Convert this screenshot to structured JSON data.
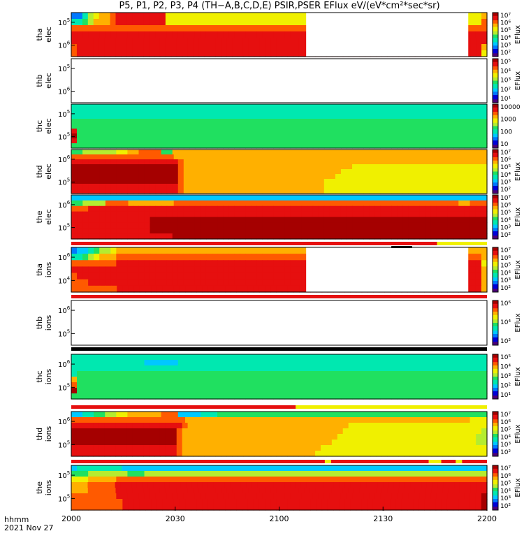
{
  "title": "P5, P1, P2, P3, P4 (TH−A,B,C,D,E) PSIR,PSER EFlux eV/(eV*cm²*sec*sr)",
  "x_axis": {
    "ticks": [
      "2000",
      "2030",
      "2100",
      "2130",
      "2200"
    ],
    "label_line1": "hhmm",
    "label_line2": "2021 Nov 27"
  },
  "colors": {
    "palette": [
      "#4b0079",
      "#0000d8",
      "#0078ff",
      "#00c8ff",
      "#00e8b0",
      "#20e060",
      "#b4ec30",
      "#f0f000",
      "#ffb000",
      "#ff5a00",
      "#e60f0f",
      "#a50000"
    ]
  },
  "chart_data": [
    {
      "type": "heatmap",
      "panel": "tha-elec",
      "ylabel": [
        "tha",
        "elec"
      ],
      "yticks": [
        {
          "v": "10",
          "e": "5"
        },
        {
          "v": "10",
          "e": "6"
        }
      ],
      "colorbar": {
        "title": "EFlux",
        "ticks": [
          "10²",
          "10³",
          "10⁴",
          "10⁵",
          "10⁶",
          "10⁷"
        ]
      },
      "rows": [
        "22467889AAAAAAAAA7777777777777777777777777777777777777777777777777777777778",
        "44568889AAAAAAAAA7777777777777777777777777777777777777777777777777777777779",
        "99999999999999999999999999999999999999999999999999999999999999999999999999",
        "AAAAAAAAAAAAAAAAAAAAAAAAAAAAAAAAAAAAAAAAAAAAAAAAAAAAAAAAAAAAAAAAAAAAAAAAAA",
        "AAAAAAAAAAAAAAAAAAAAAAAAAAAAAAAAAAAAAAAAAAAAAAAAAAAAAAAAAAAAAAAAAAAAAAAAAAA",
        "9AAAAAAAAAAAAAAAAAAAAAAAAAAAAAAAAAAAAAAAAAAAAAAAAAAAAAAAAAAAAAAAAAAAAAAAAA8",
        "9AAAAAAAAAAAAAAAAAAAAAAAAAAAAAAAAAAAAAAAAAAAAAAAAAAAAAAAAAAAAAAAAAAAAAAAAA7"
      ],
      "gaps": [
        [
          0.565,
          0.955
        ]
      ]
    },
    {
      "type": "heatmap",
      "panel": "thb-elec",
      "ylabel": [
        "thb",
        "elec"
      ],
      "yticks": [
        {
          "v": "10",
          "e": "5"
        },
        {
          "v": "10",
          "e": "6"
        }
      ],
      "colorbar": {
        "title": "EFlux",
        "ticks": [
          "10¹",
          "10²",
          "10³",
          "10⁴",
          "10⁵"
        ]
      },
      "rows": [],
      "gaps": []
    },
    {
      "type": "heatmap",
      "panel": "thc-elec",
      "ylabel": [
        "thc",
        "elec"
      ],
      "yticks": [
        {
          "v": "10",
          "e": "5"
        },
        {
          "v": "10",
          "e": "5"
        }
      ],
      "colorbar": {
        "title": "",
        "ticks": [
          "10",
          "100",
          "1000",
          "10000"
        ]
      },
      "rows": [
        "44444444444444444444444444444444444444444444444444444444444444444444444444",
        "44444444444444444444444444444444444444444444444444444444444444444444444444",
        "44444444444444444444444444444444444444444444444444444444444444444444444444",
        "55555555555555555555555555555555555555555555555555555555555555555555555555",
        "55555555555555555555555555555555555555555555555555555555555555555555555555",
        "A5555555555555555555555555555555555555555555555555555555555555555555555555",
        "B5555555555555555555555555555555555555555555555555555555555555555555555555",
        "A5555555555555555555555555555555555555555555555555555555555555555555555555",
        "55555555555555555555555555555555555555555555555555555555555555555555555555"
      ],
      "gaps": []
    },
    {
      "type": "heatmap",
      "panel": "thd-elec",
      "ylabel": [
        "thd",
        "elec"
      ],
      "yticks": [
        {
          "v": "10",
          "e": "6"
        },
        {
          "v": "10",
          "e": "5"
        }
      ],
      "colorbar": {
        "title": "EFlux",
        "ticks": [
          "10²",
          "10³",
          "10⁴",
          "10⁵",
          "10⁶",
          "10⁷"
        ]
      },
      "rows": [
        "55666666778899995588888888888888888888888888888888888888888888888888888888",
        "9999999999999999998888888888888888888888888888888888888888888888888888888",
        "AAAAAAAAAAAAAAAAAAA9888888888888888888888888888888888888888888888888888888",
        "BBBBBBBBBBBBBBBBBBB9888888888888888888888888888888777777777777777777777777",
        "BBBBBBBBBBBBBBBBBBB9888888888888888888888888888877777777777777777777777777",
        "BBBBBBBBBBBBBBBBBBB9888888888888888888888888888777777777777777777777777777",
        "BBBBBBBBBBBBBBBBBBB9888888888888888888888888877777777777777777777777777777",
        "AAAAAAAAAAAAAAAAAAA9888888888888888888888888877777777777777777777777777777",
        "AAAAAAAAAAAAAAAAAAA9888888888888888888888888877777777777777777777777777777"
      ],
      "gaps": []
    },
    {
      "type": "heatmap",
      "panel": "the-elec",
      "ylabel": [
        "the",
        "elec"
      ],
      "yticks": [
        {
          "v": "10",
          "e": "6"
        },
        {
          "v": "10",
          "e": "5"
        }
      ],
      "colorbar": {
        "title": "EFlux",
        "ticks": [
          "10²",
          "10³",
          "10⁴",
          "10⁵",
          "10⁶",
          "10⁷"
        ]
      },
      "rows": [
        "33333333333333333333333333333333333333333333333333333333333333333333333333",
        "5566669999888888889999999999999999999999999999999999999999999999999988999",
        "999AAAAAAAAAAAAAAAAAAAAAAAAAAAAAAAAAAAAAAAAAAAAAAAAAAAAAAAAAAAAAAAAAAAAAAA",
        "AAAAAAAAAAAAAAAAAAAAAAAAAAAAAAAAAAAAAAAAAAAAAAAAAAAAAAAAAAAAAAAAAAAAAAAAAA",
        "AAAAAAAAAAAAAABBBBBBBBBBBBBBBBBBBBBBBBBBBBBBBBBBBBBBBBBBBBBBBBBBBBBBBBBBBB",
        "AAAAAAAAAAAAAABBBBBBBBBBBBBBBBBBBBBBBBBBBBBBBBBBBBBBBBBBBBBBBBBBBBBBBBBBBB",
        "AAAAAAAAAAAAAABBBBBBBBBBBBBBBBBBBBBBBBBBBBBBBBBBBBBBBBBBBBBBBBBBBBBBBBBBBB",
        "AAAAAAAAAAAAAAAAAABBBBBBBBBBBBBBBBBBBBBBBBBBBBBBBBBBBBBBBBBBBBBBBBBBBBBBBB"
      ],
      "gaps": []
    },
    {
      "type": "heatmap",
      "panel": "tha-ions",
      "ylabel": [
        "tha",
        "ions"
      ],
      "yticks": [
        {
          "v": "10",
          "e": "6"
        },
        {
          "v": "10",
          "e": "4"
        }
      ],
      "colorbar": {
        "title": "EFlux",
        "ticks": [
          "10²",
          "10³",
          "10⁴",
          "10⁵",
          "10⁶",
          "10⁷"
        ]
      },
      "rows": [
        "23345667888888888888888888888888888888888888888888888888888888888888888888",
        "44567888999999999999999999999999999999999999999999999999999999999999999998",
        "99999999AAAAAAAAAAAAAAAAAAAAAAAAAAAAAAAAAAAAAAAAAAAAAAAAAAAAAAAAAAAAAAAAA7",
        "AAAAAAAAAAAAAAAAAAAAAAAAAAAAAAAAAAAAAAAAAAAAAAAAAAAAAAAAAAAAAAAAAAAAAAAAA8",
        "9AAAAAAAAAAAAAAAAAAAAAAAAAAAAAAAAAAAAAAAAAAAAAAAAAAAAAAAAAAAAAAAAAAAAAAAA8",
        "999AAAAAAAAAAAAAAAAAAAAAAAAAAAAAAAAAAAAAAAAAAAAAAAAAAAAAAAAAAAAAAAAAAAAAA8",
        "99999999AAAAAAAAAAAAAAAAAAAAAAAAAAAAAAAAAAAAAAAAAAAAAAAAAAAAAAAAAAAAAAAA8"
      ],
      "gaps": [
        [
          0.565,
          0.955
        ]
      ]
    },
    {
      "type": "heatmap",
      "panel": "thb-ions",
      "ylabel": [
        "thb",
        "ions"
      ],
      "yticks": [
        {
          "v": "10",
          "e": "6"
        },
        {
          "v": "10",
          "e": "5"
        }
      ],
      "colorbar": {
        "title": "EFlux",
        "ticks": [
          "10²",
          "10⁴",
          "10⁶"
        ]
      },
      "rows": [],
      "gaps": []
    },
    {
      "type": "heatmap",
      "panel": "thc-ions",
      "ylabel": [
        "thc",
        "ions"
      ],
      "yticks": [
        {
          "v": "10",
          "e": "6"
        },
        {
          "v": "10",
          "e": "5"
        }
      ],
      "colorbar": {
        "title": "EFlux",
        "ticks": [
          "10¹",
          "10²",
          "10³",
          "10⁴",
          "10⁵"
        ]
      },
      "rows": [
        "44444444444444444444444444444444444444444444444444444444444444444444444444",
        "44444444444443333334444444444444444444444444444444444444444444444444444444",
        "44444444444444444444444444444444444444444444444444444444444444444444444444",
        "45555555555555555555555555555555555555555555555555555555555555555555555555",
        "85555555555555555555555555555555555555555555555555555555555555555555555555",
        "95555555555555555555555555555555555555555555555555555555555555555555555555",
        "B5555555555555555555555555555555555555555555555555555555555555555555555555",
        "55555555555555555555555555555555555555555555555555555555555555555555555555"
      ],
      "gaps": []
    },
    {
      "type": "heatmap",
      "panel": "thd-ions",
      "ylabel": [
        "thd",
        "ions"
      ],
      "yticks": [
        {
          "v": "10",
          "e": "6"
        },
        {
          "v": "10",
          "e": "5"
        }
      ],
      "colorbar": {
        "title": "EFlux",
        "ticks": [
          "10²",
          "10³",
          "10⁴",
          "10⁵",
          "10⁶",
          "10⁷"
        ]
      },
      "rows": [
        "33445566778888889993333444555555555555555555555555555555555555555555555555",
        "9999999999999999999988888888888888888888888888888888888888888888888888777",
        "AAAAAAAAAAAAAAAAAAAA9888888888888888888888888888887777777777777777777777777",
        "BBBBBBBBBBBBBBBBBBB98888888888888888888888888888877777777777777777777777776",
        "BBBBBBBBBBBBBBBBBBB98888888888888888888888888888777777777777777777777777766",
        "BBBBBBBBBBBBBBBBBBB98888888888888888888888888887777777777777777777777777766",
        "AAAAAAAAAAAAAAAAAAA98888888888888888888888888777777777777777777777777777777",
        "AAAAAAAAAAAAAAAAAAA98888888888888888888888887777777777777777777777777777777"
      ],
      "gaps": []
    },
    {
      "type": "heatmap",
      "panel": "the-ions",
      "ylabel": [
        "the",
        "ions"
      ],
      "yticks": [
        {
          "v": "10",
          "e": "5"
        },
        {
          "v": "10",
          "e": "5"
        }
      ],
      "colorbar": {
        "title": "EFlux",
        "ticks": [
          "10²",
          "10³",
          "10⁴",
          "10⁵",
          "10⁶",
          "10⁷"
        ]
      },
      "rows": [
        "34444444433333333333333333333333333333333333333333333333333333333333333333",
        "55566666665556666666666666666666666666666666666666666666666666666666666666",
        "77788888999999999999999999999999999999999999999999999999999999999999999999",
        "88899999AAAAAAAAAAAAAAAAAAAAAAAAAAAAAAAAAAAAAAAAAAAAAAAAAAAAAAAAAAAAAAAAAAAA",
        "88899999AAAAAAAAAAAAAAAAAAAAAAAAAAAAAAAAAAAAAAAAAAAAAAAAAAAAAAAAAAAAAAAAAAA",
        "99999999AAAAAAAAAAAAAAAAAAAAAAAAAAAAAAAAAAAAAAAAAAAAAAAAAAAAAAAAAAAAAAAAAB",
        "999999999AAAAAAAAAAAAAAAAAAAAAAAAAAAAAAAAAAAAAAAAAAAAAAAAAAAAAAAAAAAAAAAB",
        "999999999AAAAAAAAAAAAAAAAAAAAAAAAAAAAAAAAAAAAAAAAAAAAAAAAAAAAAAAAAAAAAAAB"
      ],
      "gaps": []
    }
  ],
  "mode_bars": [
    {
      "after_panel": 4,
      "segments": [
        {
          "from": 0,
          "to": 0.88,
          "color": "#e60f0f"
        },
        {
          "from": 0.88,
          "to": 1,
          "color": "#f0f000"
        }
      ],
      "marks": [
        {
          "from": 0.77,
          "to": 0.82
        }
      ]
    },
    {
      "after_panel": 5,
      "segments": [
        {
          "from": 0,
          "to": 1,
          "color": "#e60f0f"
        }
      ],
      "marks": []
    },
    {
      "after_panel": 6,
      "segments": [
        {
          "from": 0,
          "to": 1,
          "color": "#000000"
        }
      ],
      "marks": []
    },
    {
      "after_panel": 7,
      "segments": [
        {
          "from": 0,
          "to": 0.54,
          "color": "#e60f0f"
        },
        {
          "from": 0.54,
          "to": 1,
          "color": "#f0f000"
        }
      ],
      "marks": []
    },
    {
      "after_panel": 8,
      "segments": [
        {
          "from": 0,
          "to": 0.61,
          "color": "#e60f0f"
        },
        {
          "from": 0.61,
          "to": 0.625,
          "color": "#f0f000"
        },
        {
          "from": 0.625,
          "to": 0.86,
          "color": "#e60f0f"
        },
        {
          "from": 0.86,
          "to": 0.89,
          "color": "#f0f000"
        },
        {
          "from": 0.89,
          "to": 0.925,
          "color": "#e60f0f"
        },
        {
          "from": 0.925,
          "to": 0.94,
          "color": "#f0f000"
        },
        {
          "from": 0.94,
          "to": 1,
          "color": "#e60f0f"
        }
      ],
      "marks": []
    }
  ]
}
